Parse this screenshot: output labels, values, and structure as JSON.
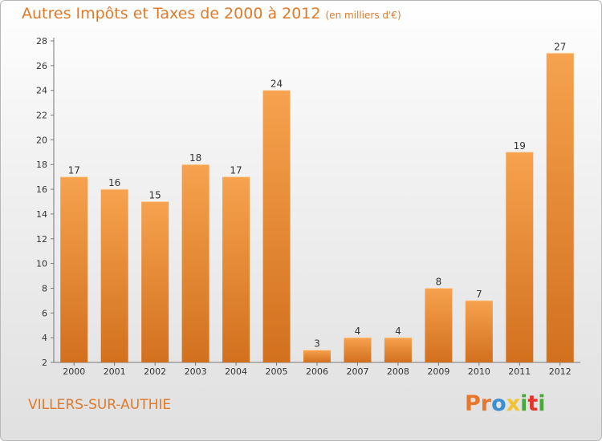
{
  "page": {
    "title": "Autres Impôts et Taxes de 2000 à 2012",
    "unit": "(en milliers d'€)",
    "commune": "VILLERS-SUR-AUTHIE",
    "logo": "Proxiti",
    "logo_colors": [
      "#e8762b",
      "#e8762b",
      "#3a8fd1",
      "#f2c230",
      "#48a83c",
      "#e0352b",
      "#48a83c"
    ]
  },
  "chart_data": {
    "type": "bar",
    "title": "Autres Impôts et Taxes de 2000 à 2012",
    "subtitle": "(en milliers d'€)",
    "categories": [
      "2000",
      "2001",
      "2002",
      "2003",
      "2004",
      "2005",
      "2006",
      "2007",
      "2008",
      "2009",
      "2010",
      "2011",
      "2012"
    ],
    "values": [
      17,
      16,
      15,
      18,
      17,
      24,
      3,
      4,
      4,
      8,
      7,
      19,
      27
    ],
    "ylim": [
      2,
      28
    ],
    "yticks": [
      2,
      4,
      6,
      8,
      10,
      12,
      14,
      16,
      18,
      20,
      22,
      24,
      26,
      28
    ],
    "grid": false,
    "bar_color_top": "#f6a24e",
    "bar_color_bottom": "#d2701e"
  }
}
